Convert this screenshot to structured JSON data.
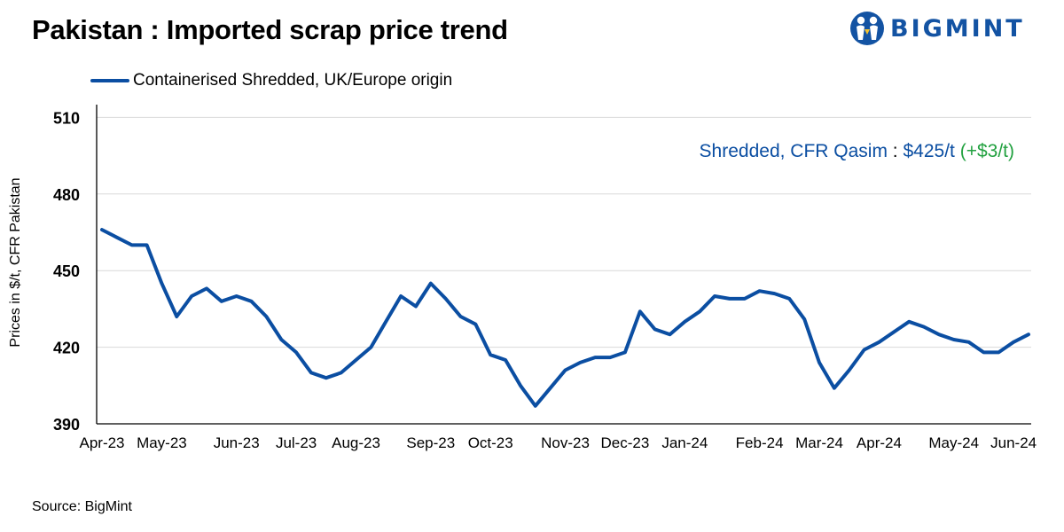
{
  "title": "Pakistan : Imported scrap price trend",
  "logo": {
    "text": "BIGMINT"
  },
  "source": "Source: BigMint",
  "colors": {
    "series": "#0b4ea2",
    "positive": "#22a140",
    "axis": "#000000",
    "grid": "#d9d9d9"
  },
  "annotation": {
    "label": "Shredded, CFR Qasim",
    "separator": " : ",
    "price": "$425/t",
    "change": "(+$3/t)"
  },
  "chart_data": {
    "type": "line",
    "title": "Pakistan : Imported scrap price trend",
    "ylabel": "Prices in $/t, CFR Pakistan",
    "xlabel": "",
    "ylim": [
      390,
      515
    ],
    "yticks": [
      390,
      420,
      450,
      480,
      510
    ],
    "grid": "horizontal",
    "legend_position": "top-left",
    "x_tick_labels": [
      "Apr-23",
      "May-23",
      "Jun-23",
      "Jul-23",
      "Aug-23",
      "Sep-23",
      "Oct-23",
      "Nov-23",
      "Dec-23",
      "Jan-24",
      "Feb-24",
      "Mar-24",
      "Apr-24",
      "May-24",
      "Jun-24"
    ],
    "x_tick_index": [
      0,
      4,
      9,
      13,
      17,
      22,
      26,
      31,
      35,
      39,
      44,
      48,
      52,
      57,
      61
    ],
    "series": [
      {
        "name": "Containerised Shredded, UK/Europe origin",
        "values": [
          466,
          463,
          460,
          460,
          445,
          432,
          440,
          443,
          438,
          440,
          438,
          432,
          423,
          418,
          410,
          408,
          410,
          415,
          420,
          430,
          440,
          436,
          445,
          439,
          432,
          429,
          417,
          415,
          405,
          397,
          404,
          411,
          414,
          416,
          416,
          418,
          434,
          427,
          425,
          430,
          434,
          440,
          439,
          439,
          442,
          441,
          439,
          431,
          414,
          404,
          411,
          419,
          422,
          426,
          430,
          428,
          425,
          423,
          422,
          418,
          418,
          422,
          425
        ]
      }
    ]
  }
}
